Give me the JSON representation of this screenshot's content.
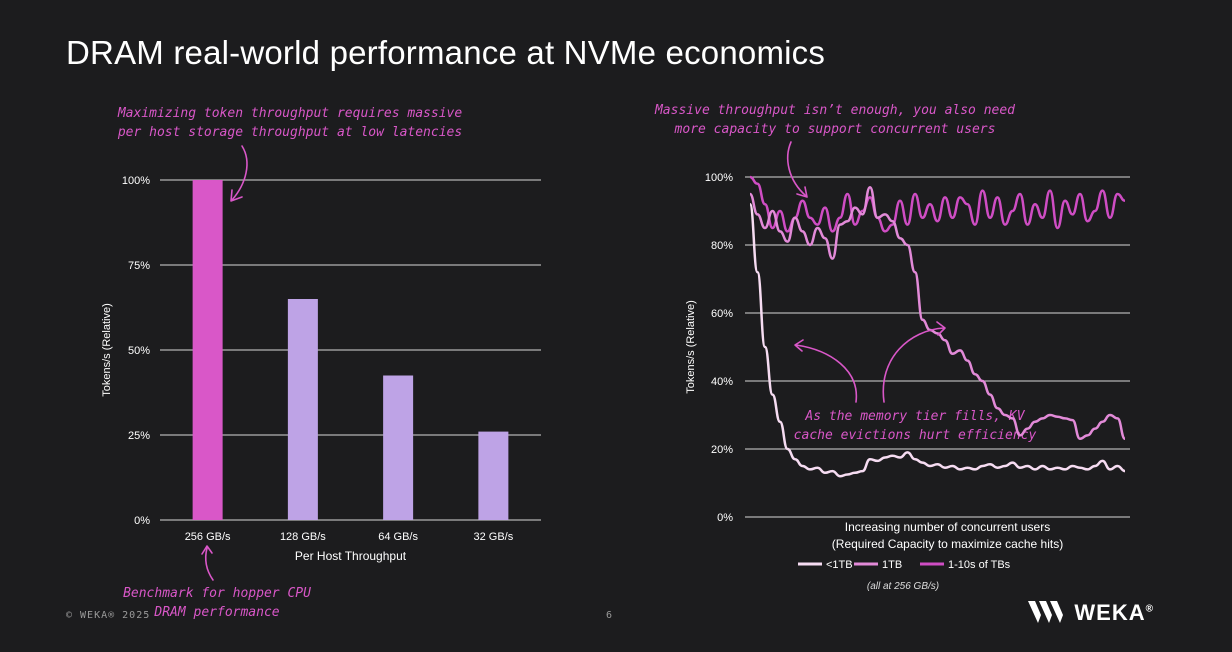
{
  "slide": {
    "title": "DRAM real-world performance at NVMe economics",
    "page_number": "6",
    "copyright": "© WEKA® 2025",
    "logo_text": "WEKA",
    "logo_mark": "®"
  },
  "annotations": {
    "left_top_1": "Maximizing token throughput requires massive",
    "left_top_2": "per host storage throughput at low latencies",
    "left_bottom_1": "Benchmark for hopper CPU",
    "left_bottom_2": "DRAM performance",
    "right_top_1": "Massive throughput isn’t enough, you also need",
    "right_top_2": "more capacity to support concurrent users",
    "right_mid_1": "As the memory tier fills, KV",
    "right_mid_2": "cache evictions hurt efficiency"
  },
  "colors": {
    "highlight": "#d957c8",
    "bar_muted": "#bea3e6",
    "line_lt1": "#f6dcf2",
    "line_1tb": "#e28ad8",
    "line_multi": "#cf4dc4",
    "grid": "#d8d8d8",
    "axis_text": "#ffffff"
  },
  "chart_data": [
    {
      "type": "bar",
      "categories": [
        "256 GB/s",
        "128 GB/s",
        "64 GB/s",
        "32 GB/s"
      ],
      "values": [
        100,
        65,
        42.5,
        26
      ],
      "highlight_index": 0,
      "xlabel": "Per Host Throughput",
      "ylabel": "Tokens/s (Relative)",
      "ylim": [
        0,
        100
      ],
      "yticks": [
        0,
        25,
        50,
        75,
        100
      ],
      "ytick_labels": [
        "0%",
        "25%",
        "50%",
        "75%",
        "100%"
      ]
    },
    {
      "type": "line",
      "xlabel_1": "Increasing number of concurrent users",
      "xlabel_2": "(Required Capacity to maximize cache hits)",
      "ylabel": "Tokens/s (Relative)",
      "ylim": [
        0,
        100
      ],
      "yticks": [
        0,
        20,
        40,
        60,
        80,
        100
      ],
      "ytick_labels": [
        "0%",
        "20%",
        "40%",
        "60%",
        "80%",
        "100%"
      ],
      "xlim": [
        0,
        50
      ],
      "note": "(all at 256 GB/s)",
      "series": [
        {
          "name": "<1TB",
          "color_key": "line_lt1",
          "x": [
            0,
            1,
            2,
            3,
            4,
            5,
            6,
            7,
            8,
            9,
            10,
            11,
            12,
            13,
            14,
            15,
            16,
            17,
            18,
            19,
            20,
            21,
            22,
            23,
            24,
            25,
            26,
            27,
            28,
            29,
            30,
            31,
            32,
            33,
            34,
            35,
            36,
            37,
            38,
            39,
            40,
            41,
            42,
            43,
            44,
            45,
            46,
            47,
            48,
            49,
            50
          ],
          "values": [
            92,
            72,
            50,
            36,
            28,
            20,
            17,
            15,
            14,
            14.5,
            13,
            13.5,
            12,
            12.5,
            13,
            13.5,
            17,
            16.5,
            17.5,
            18,
            17.5,
            19,
            17,
            16,
            15,
            15.5,
            14.5,
            15,
            14,
            14.5,
            14,
            15,
            15.5,
            14.5,
            15,
            16,
            14.5,
            15,
            14,
            15,
            14,
            14.5,
            14,
            15,
            14.5,
            14,
            15,
            16.5,
            14,
            15,
            13.5
          ]
        },
        {
          "name": "1TB",
          "color_key": "line_1tb",
          "x": [
            0,
            1,
            2,
            3,
            4,
            5,
            6,
            7,
            8,
            9,
            10,
            11,
            12,
            13,
            14,
            15,
            16,
            17,
            18,
            19,
            20,
            21,
            22,
            23,
            24,
            25,
            26,
            27,
            28,
            29,
            30,
            31,
            32,
            33,
            34,
            35,
            36,
            37,
            38,
            39,
            40,
            41,
            42,
            43,
            44,
            45,
            46,
            47,
            48,
            49,
            50
          ],
          "values": [
            95,
            89,
            85,
            90,
            84,
            81,
            88,
            84,
            80,
            85,
            82,
            76,
            86,
            87,
            91,
            89,
            97,
            88,
            89,
            87,
            82,
            80,
            72,
            58,
            55,
            54,
            52,
            48,
            49,
            46,
            42,
            40,
            36,
            32,
            30,
            29,
            24,
            26,
            28,
            29,
            30,
            29.5,
            29,
            28.5,
            23,
            24,
            26,
            28,
            30,
            29,
            23
          ]
        },
        {
          "name": "1-10s of TBs",
          "color_key": "line_multi",
          "x": [
            0,
            1,
            2,
            3,
            4,
            5,
            6,
            7,
            8,
            9,
            10,
            11,
            12,
            13,
            14,
            15,
            16,
            17,
            18,
            19,
            20,
            21,
            22,
            23,
            24,
            25,
            26,
            27,
            28,
            29,
            30,
            31,
            32,
            33,
            34,
            35,
            36,
            37,
            38,
            39,
            40,
            41,
            42,
            43,
            44,
            45,
            46,
            47,
            48,
            49,
            50
          ],
          "values": [
            100,
            98,
            92,
            85,
            90,
            84,
            88,
            93,
            88,
            86,
            91,
            84,
            88,
            95,
            86,
            90,
            94,
            88,
            84,
            86,
            93,
            86,
            95,
            88,
            92,
            87,
            94,
            88,
            94,
            92,
            86,
            96,
            88,
            94,
            86,
            90,
            95,
            86,
            92,
            88,
            96,
            85,
            93,
            89,
            95,
            87,
            90,
            96,
            88,
            95,
            93
          ]
        }
      ]
    }
  ]
}
